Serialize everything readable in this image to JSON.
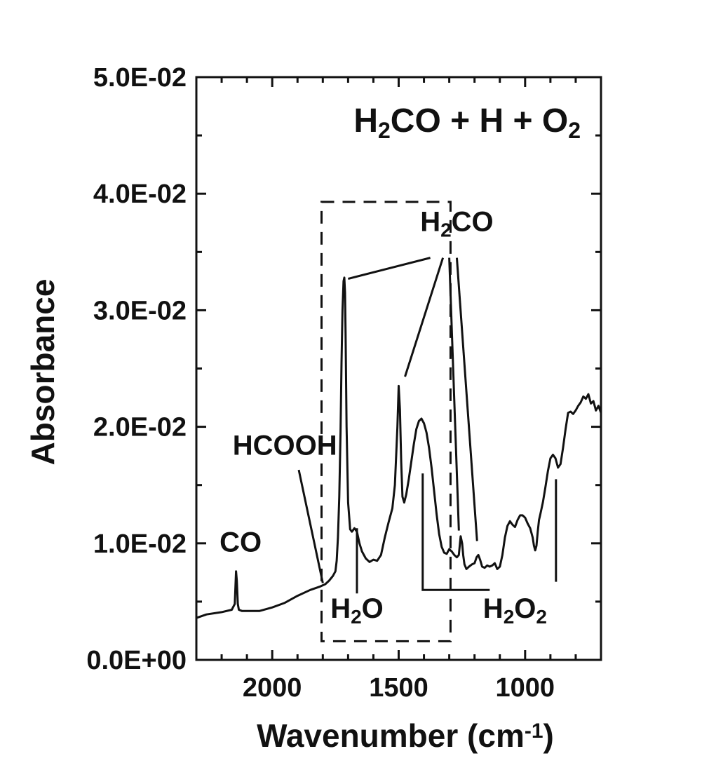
{
  "chart_data": {
    "type": "line",
    "title": "H2CO + H + O2",
    "title_parts": [
      "H",
      "2",
      "CO + H + O",
      "2"
    ],
    "xlabel": "Wavenumber (cm-1)",
    "xlabel_parts": [
      "Wavenumber (cm",
      "-1",
      ")"
    ],
    "ylabel": "Absorbance",
    "xlim": [
      2300,
      700
    ],
    "ylim": [
      0,
      0.05
    ],
    "x_ticks": [
      2000,
      1500,
      1000
    ],
    "x_tick_labels": [
      "2000",
      "1500",
      "1000"
    ],
    "y_ticks": [
      0,
      0.01,
      0.02,
      0.03,
      0.04,
      0.05
    ],
    "y_tick_labels": [
      "0.0E+00",
      "1.0E-02",
      "2.0E-02",
      "3.0E-02",
      "4.0E-02",
      "5.0E-02"
    ],
    "grid": false,
    "series": [
      {
        "color": "#111111",
        "x": [
          2300,
          2260,
          2200,
          2160,
          2148,
          2143,
          2140,
          2136,
          2132,
          2120,
          2050,
          2000,
          1950,
          1900,
          1850,
          1810,
          1790,
          1775,
          1760,
          1750,
          1745,
          1740,
          1735,
          1730,
          1726,
          1722,
          1718,
          1715,
          1712,
          1710,
          1706,
          1700,
          1692,
          1685,
          1675,
          1665,
          1655,
          1645,
          1630,
          1615,
          1600,
          1585,
          1570,
          1555,
          1540,
          1525,
          1515,
          1505,
          1500,
          1495,
          1490,
          1485,
          1478,
          1470,
          1460,
          1450,
          1440,
          1430,
          1420,
          1410,
          1400,
          1390,
          1380,
          1370,
          1360,
          1350,
          1340,
          1330,
          1320,
          1310,
          1300,
          1290,
          1280,
          1270,
          1262,
          1255,
          1249,
          1245,
          1240,
          1232,
          1222,
          1210,
          1200,
          1192,
          1185,
          1178,
          1170,
          1160,
          1150,
          1140,
          1130,
          1120,
          1110,
          1100,
          1090,
          1080,
          1070,
          1060,
          1050,
          1040,
          1030,
          1020,
          1010,
          1000,
          990,
          980,
          970,
          965,
          960,
          955,
          950,
          945,
          940,
          930,
          920,
          910,
          900,
          890,
          880,
          870,
          860,
          850,
          840,
          830,
          820,
          810,
          800,
          790,
          780,
          770,
          760,
          750,
          740,
          730,
          720,
          710,
          700
        ],
        "y": [
          0.0036,
          0.0039,
          0.0041,
          0.0043,
          0.0048,
          0.0076,
          0.0068,
          0.0048,
          0.0043,
          0.0042,
          0.0042,
          0.0045,
          0.0049,
          0.0055,
          0.006,
          0.0063,
          0.0065,
          0.0068,
          0.0072,
          0.0076,
          0.0085,
          0.0105,
          0.014,
          0.0195,
          0.0255,
          0.03,
          0.0325,
          0.0328,
          0.0315,
          0.028,
          0.02,
          0.0135,
          0.0112,
          0.011,
          0.0113,
          0.011,
          0.01,
          0.0093,
          0.0087,
          0.0084,
          0.0086,
          0.0085,
          0.009,
          0.0105,
          0.0118,
          0.013,
          0.015,
          0.02,
          0.0235,
          0.0215,
          0.017,
          0.014,
          0.0135,
          0.0142,
          0.0155,
          0.017,
          0.0185,
          0.0198,
          0.0205,
          0.0207,
          0.0203,
          0.0195,
          0.0182,
          0.0165,
          0.0145,
          0.0125,
          0.0108,
          0.0097,
          0.0092,
          0.0091,
          0.0095,
          0.0093,
          0.009,
          0.0088,
          0.009,
          0.0106,
          0.01,
          0.009,
          0.0082,
          0.0078,
          0.008,
          0.0082,
          0.0083,
          0.0088,
          0.009,
          0.0086,
          0.008,
          0.0079,
          0.0081,
          0.008,
          0.0081,
          0.0083,
          0.0078,
          0.008,
          0.009,
          0.0105,
          0.0115,
          0.0119,
          0.0116,
          0.0114,
          0.012,
          0.0124,
          0.0124,
          0.0122,
          0.0117,
          0.0113,
          0.0105,
          0.0098,
          0.0094,
          0.0098,
          0.011,
          0.012,
          0.0125,
          0.0135,
          0.0148,
          0.0162,
          0.0173,
          0.0176,
          0.0173,
          0.0165,
          0.0168,
          0.0182,
          0.0198,
          0.0212,
          0.0213,
          0.0211,
          0.0214,
          0.0218,
          0.0221,
          0.0226,
          0.0224,
          0.0228,
          0.022,
          0.0222,
          0.0214,
          0.0218,
          0.0212
        ]
      }
    ],
    "annotations": [
      {
        "parts": [
          "CO"
        ],
        "x": 2125,
        "y": 0.0093
      },
      {
        "parts": [
          "HCOOH"
        ],
        "x": 1950,
        "y": 0.0176
      },
      {
        "parts": [
          "H",
          "2",
          "CO"
        ],
        "x": 1270,
        "y": 0.0368
      },
      {
        "parts": [
          "H",
          "2",
          "O"
        ],
        "x": 1665,
        "y": 0.0036
      },
      {
        "parts": [
          "H",
          "2",
          "O",
          "2"
        ],
        "x": 1040,
        "y": 0.0036
      }
    ],
    "annotation_lines": [
      {
        "from": [
          1895,
          0.0163
        ],
        "to": [
          1800,
          0.0066
        ]
      },
      {
        "from": [
          1375,
          0.0345
        ],
        "to": [
          1700,
          0.0327
        ]
      },
      {
        "from": [
          1325,
          0.0345
        ],
        "to": [
          1475,
          0.0243
        ]
      },
      {
        "from": [
          1300,
          0.0345
        ],
        "to": [
          1262,
          0.0111
        ]
      },
      {
        "from": [
          1270,
          0.0345
        ],
        "to": [
          1190,
          0.0102
        ]
      },
      {
        "from": [
          1665,
          0.0113
        ],
        "to": [
          1665,
          0.0057
        ]
      },
      {
        "from": [
          1405,
          0.016
        ],
        "to": [
          1405,
          0.006
        ],
        "to2": [
          1140,
          0.006
        ]
      },
      {
        "from": [
          878,
          0.0155
        ],
        "to": [
          878,
          0.0067
        ]
      }
    ],
    "highlight_box": {
      "x": [
        1805,
        1295
      ],
      "y": [
        0.0016,
        0.0393
      ],
      "style": "dashed"
    }
  }
}
